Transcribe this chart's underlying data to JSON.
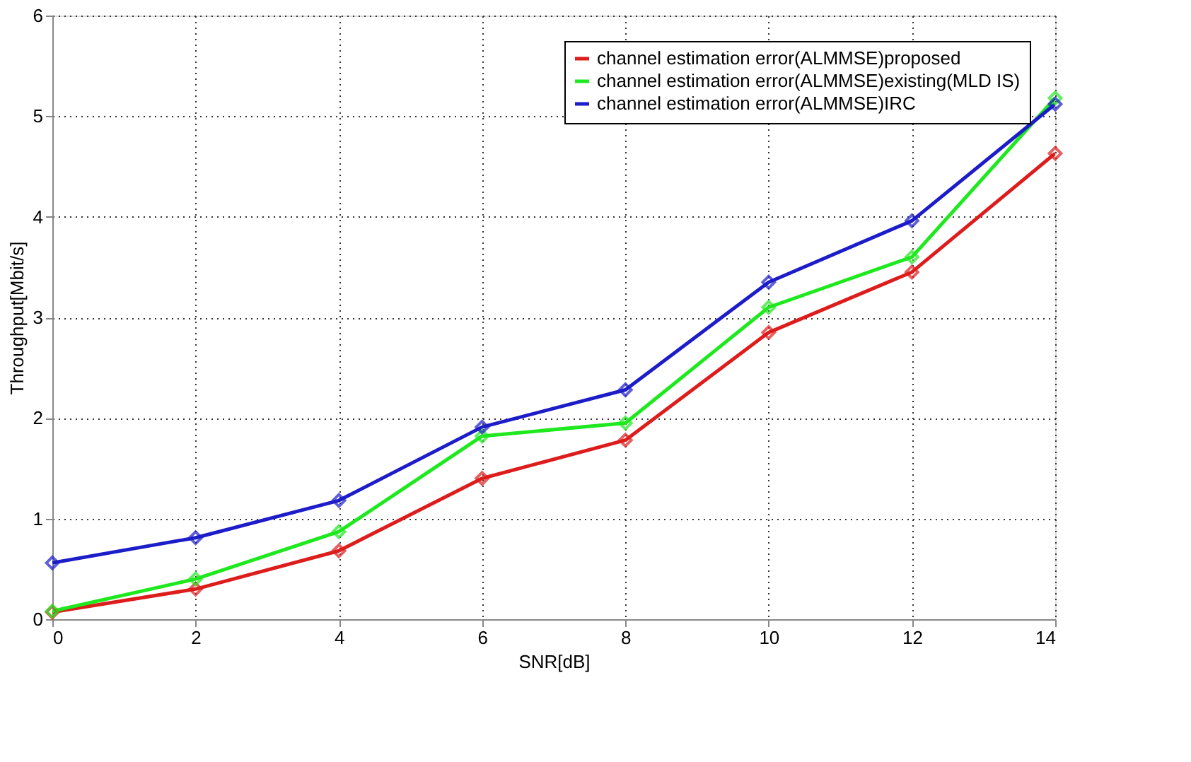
{
  "chart_data": {
    "type": "line",
    "xlabel": "SNR[dB]",
    "ylabel": "Throughput[Mbit/s]",
    "x": [
      0,
      2,
      4,
      6,
      8,
      10,
      12,
      14
    ],
    "series": [
      {
        "name": "channel estimation error(ALMMSE)proposed",
        "color": "#dd1c1c",
        "values": [
          0.07,
          0.3,
          0.68,
          1.4,
          1.78,
          2.85,
          3.45,
          4.63
        ]
      },
      {
        "name": "channel estimation error(ALMMSE)existing(MLD IS)",
        "color": "#1ee81e",
        "values": [
          0.08,
          0.4,
          0.87,
          1.82,
          1.95,
          3.1,
          3.6,
          5.18
        ]
      },
      {
        "name": "channel estimation error(ALMMSE)IRC",
        "color": "#1c1cc8",
        "values": [
          0.56,
          0.81,
          1.18,
          1.91,
          2.28,
          3.35,
          3.96,
          5.12
        ]
      }
    ],
    "xlim": [
      0,
      14
    ],
    "xticks": [
      0,
      2,
      4,
      6,
      8,
      10,
      12,
      14
    ],
    "ylim": [
      0,
      6
    ],
    "yticks": [
      0,
      1,
      2,
      3,
      4,
      5,
      6
    ],
    "grid": true,
    "legend": "top right",
    "marker": "diamond",
    "line_style": "solid"
  }
}
